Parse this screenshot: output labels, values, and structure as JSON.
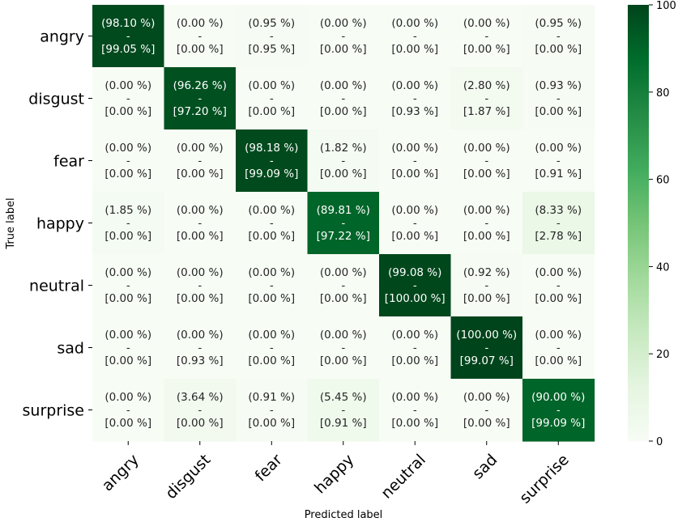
{
  "chart_data": {
    "type": "heatmap",
    "xlabel": "Predicted label",
    "ylabel": "True label",
    "row_labels": [
      "angry",
      "disgust",
      "fear",
      "happy",
      "neutral",
      "sad",
      "surprise"
    ],
    "col_labels": [
      "angry",
      "disgust",
      "fear",
      "happy",
      "neutral",
      "sad",
      "surprise"
    ],
    "values": [
      [
        98.1,
        0.0,
        0.95,
        0.0,
        0.0,
        0.0,
        0.95
      ],
      [
        0.0,
        96.26,
        0.0,
        0.0,
        0.0,
        2.8,
        0.93
      ],
      [
        0.0,
        0.0,
        98.18,
        1.82,
        0.0,
        0.0,
        0.0
      ],
      [
        1.85,
        0.0,
        0.0,
        89.81,
        0.0,
        0.0,
        8.33
      ],
      [
        0.0,
        0.0,
        0.0,
        0.0,
        99.08,
        0.92,
        0.0
      ],
      [
        0.0,
        0.0,
        0.0,
        0.0,
        0.0,
        100.0,
        0.0
      ],
      [
        0.0,
        3.64,
        0.91,
        5.45,
        0.0,
        0.0,
        90.0
      ]
    ],
    "secondary_values": [
      [
        99.05,
        0.0,
        0.95,
        0.0,
        0.0,
        0.0,
        0.0
      ],
      [
        0.0,
        97.2,
        0.0,
        0.0,
        0.93,
        1.87,
        0.0
      ],
      [
        0.0,
        0.0,
        99.09,
        0.0,
        0.0,
        0.0,
        0.91
      ],
      [
        0.0,
        0.0,
        0.0,
        97.22,
        0.0,
        0.0,
        2.78
      ],
      [
        0.0,
        0.0,
        0.0,
        0.0,
        100.0,
        0.0,
        0.0
      ],
      [
        0.0,
        0.93,
        0.0,
        0.0,
        0.0,
        99.07,
        0.0
      ],
      [
        0.0,
        0.0,
        0.0,
        0.91,
        0.0,
        0.0,
        99.09
      ]
    ],
    "cell_separator": "-",
    "colorbar": {
      "range": [
        0,
        100
      ],
      "ticks": [
        0,
        20,
        40,
        60,
        80,
        100
      ],
      "colormap": "Greens"
    }
  }
}
